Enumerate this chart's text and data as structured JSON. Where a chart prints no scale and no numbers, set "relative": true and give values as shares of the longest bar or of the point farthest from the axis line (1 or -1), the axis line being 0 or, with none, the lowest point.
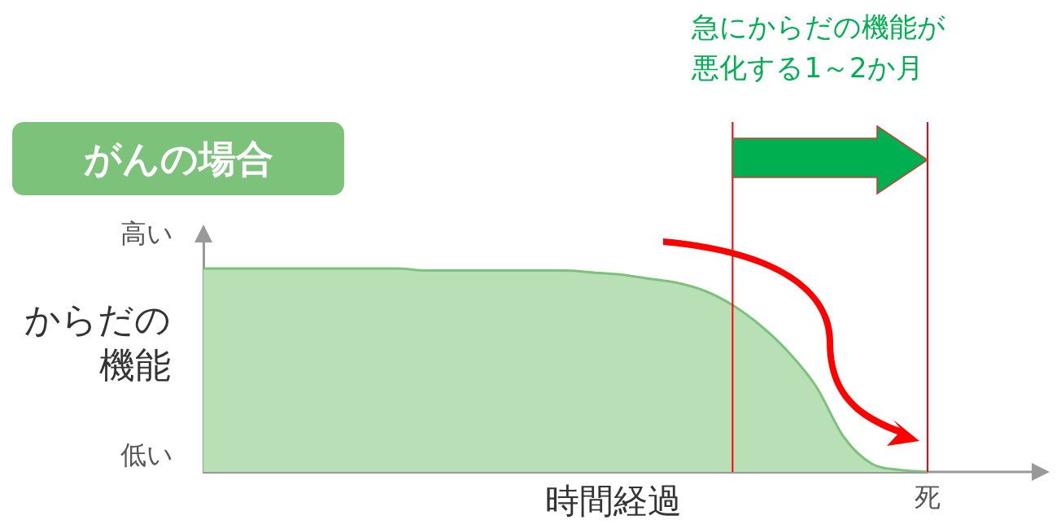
{
  "chart_data": {
    "type": "area",
    "title": "がんの場合",
    "xlabel": "時間経過",
    "ylabel": "からだの機能",
    "relative": true,
    "categories": [
      null,
      null,
      null,
      null,
      null,
      null,
      null,
      null,
      null,
      null,
      null,
      null,
      null,
      null,
      null,
      null,
      null,
      null,
      null,
      null,
      null,
      null,
      null,
      null,
      null,
      null,
      null
    ],
    "series": [
      {
        "color": "#b9dfb6",
        "values": [
          1,
          1,
          1,
          1,
          1,
          1,
          1,
          1,
          0.99,
          0.99,
          0.99,
          0.99,
          0.99,
          0.99,
          0.98,
          0.97,
          0.95,
          0.93,
          0.89,
          0.82,
          0.72,
          0.59,
          0.42,
          0.17,
          0.04,
          0.01,
          0
        ]
      }
    ],
    "annotations": [
      "高い",
      "低い",
      "急にからだの機能が悪化する1～2か月",
      "死"
    ],
    "grid": false,
    "legend": false,
    "marker": "none"
  }
}
